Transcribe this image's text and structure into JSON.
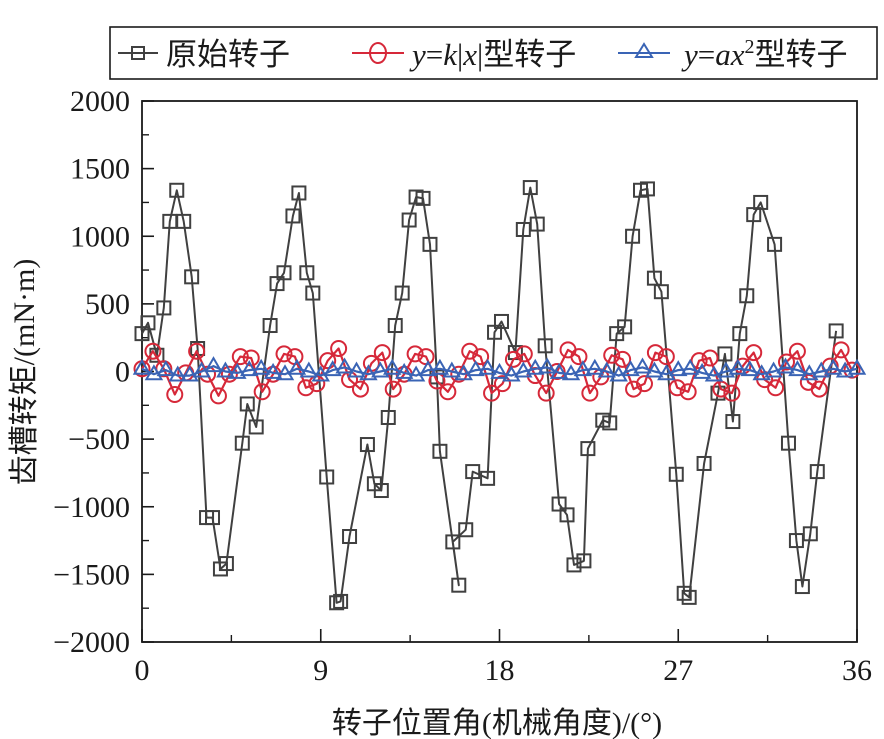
{
  "chart_data": {
    "type": "line",
    "title": "",
    "xlabel": "转子位置角(机械角度)/(°)",
    "ylabel": "齿槽转矩/(mN·m)",
    "xlim": [
      0,
      36
    ],
    "ylim": [
      -2000,
      2000
    ],
    "xticks": [
      0,
      9,
      18,
      27,
      36
    ],
    "xtick_labels": [
      "0",
      "9",
      "18",
      "27",
      "36"
    ],
    "yticks": [
      -2000,
      -1500,
      -1000,
      -500,
      0,
      500,
      1000,
      1500,
      2000
    ],
    "ytick_labels": [
      "−2000",
      "−1500",
      "−1000",
      "−500",
      "0",
      "500",
      "1000",
      "1500",
      "2000"
    ],
    "grid": false,
    "legend_position": "top (above plot, boxed)",
    "legend": [
      {
        "label": "原始转子",
        "marker": "square",
        "color": "#404040"
      },
      {
        "label": "y=k|x|型转子",
        "marker": "circle",
        "color": "#d62839"
      },
      {
        "label": "y=ax²型转子",
        "marker": "triangle",
        "color": "#3a64b5"
      }
    ],
    "series": [
      {
        "name": "原始转子",
        "color": "#404040",
        "marker": "square",
        "x": [
          0,
          0.3,
          0.75,
          1.1,
          1.4,
          1.75,
          2.1,
          2.5,
          2.8,
          3.25,
          3.55,
          3.95,
          4.25,
          5.05,
          5.3,
          5.75,
          6.45,
          6.8,
          7.15,
          7.6,
          7.9,
          8.3,
          8.6,
          9.3,
          9.8,
          10.0,
          10.45,
          11.35,
          11.7,
          12.05,
          12.4,
          12.75,
          13.1,
          13.45,
          13.8,
          14.15,
          14.5,
          14.85,
          15.0,
          15.95,
          15.65,
          16.3,
          16.65,
          17.4,
          17.75,
          18.1,
          18.8,
          19.2,
          19.55,
          19.9,
          20.3,
          21.0,
          21.4,
          21.75,
          22.25,
          22.45,
          23.2,
          23.55,
          23.9,
          24.3,
          24.7,
          25.1,
          25.45,
          25.8,
          26.15,
          26.9,
          27.3,
          27.55,
          28.3,
          29.0,
          29.35,
          29.75,
          30.1,
          30.45,
          30.8,
          31.15,
          31.85,
          32.55,
          32.95,
          33.25,
          33.65,
          34.0,
          34.95
        ],
        "y": [
          280,
          360,
          120,
          470,
          1110,
          1340,
          1110,
          700,
          170,
          -1080,
          -1080,
          -1460,
          -1420,
          -530,
          -240,
          -410,
          340,
          650,
          730,
          1150,
          1320,
          730,
          580,
          -780,
          -1710,
          -1700,
          -1220,
          -540,
          -830,
          -880,
          -340,
          340,
          580,
          1120,
          1290,
          1280,
          940,
          -40,
          -590,
          -1580,
          -1260,
          -1170,
          -740,
          -790,
          290,
          370,
          140,
          1050,
          1360,
          1090,
          190,
          -980,
          -1060,
          -1430,
          -1400,
          -570,
          -360,
          -380,
          280,
          330,
          1000,
          1340,
          1350,
          690,
          590,
          -760,
          -1640,
          -1670,
          -680,
          -160,
          130,
          -370,
          280,
          560,
          1160,
          1250,
          940,
          -530,
          -1250,
          -1590,
          -1200,
          -740,
          300
        ]
      },
      {
        "name": "y=k|x|型转子",
        "color": "#d62839",
        "marker": "circle",
        "x": [
          0,
          0.55,
          1.1,
          1.65,
          2.2,
          2.75,
          3.3,
          3.85,
          4.4,
          4.95,
          5.5,
          6.05,
          6.6,
          7.15,
          7.7,
          8.25,
          8.8,
          9.35,
          9.9,
          10.45,
          11.0,
          11.55,
          12.1,
          12.65,
          13.2,
          13.75,
          14.3,
          14.85,
          15.4,
          15.95,
          16.5,
          17.05,
          17.6,
          18.15,
          18.7,
          19.25,
          19.8,
          20.35,
          20.9,
          21.45,
          22.0,
          22.55,
          23.1,
          23.65,
          24.2,
          24.75,
          25.3,
          25.85,
          26.4,
          26.95,
          27.5,
          28.05,
          28.6,
          29.15,
          29.7,
          30.25,
          30.8,
          31.35,
          31.9,
          32.45,
          33.0,
          33.55,
          34.1,
          34.65,
          35.2,
          35.75
        ],
        "y": [
          20,
          150,
          20,
          -170,
          -10,
          150,
          -20,
          -180,
          -20,
          110,
          100,
          -150,
          -20,
          130,
          110,
          -120,
          -90,
          80,
          170,
          -60,
          -130,
          60,
          140,
          -130,
          -20,
          130,
          110,
          -70,
          -150,
          -20,
          150,
          110,
          -160,
          -90,
          90,
          130,
          -30,
          -160,
          0,
          160,
          110,
          -160,
          -40,
          120,
          90,
          -130,
          -90,
          140,
          110,
          -120,
          -150,
          80,
          100,
          -130,
          -160,
          40,
          140,
          -60,
          -120,
          70,
          150,
          -80,
          -130,
          40,
          160,
          10
        ]
      },
      {
        "name": "y=ax²型转子",
        "color": "#3a64b5",
        "marker": "triangle",
        "x": [
          0,
          0.6,
          1.2,
          1.8,
          2.4,
          3.0,
          3.6,
          4.2,
          4.8,
          5.4,
          6.0,
          6.6,
          7.2,
          7.8,
          8.4,
          9.0,
          9.6,
          10.2,
          10.8,
          11.4,
          12.0,
          12.6,
          13.2,
          13.8,
          14.4,
          15.0,
          15.6,
          16.2,
          16.8,
          17.4,
          18.0,
          18.6,
          19.2,
          19.8,
          20.4,
          21.0,
          21.6,
          22.2,
          22.8,
          23.4,
          24.0,
          24.6,
          25.2,
          25.8,
          26.4,
          27.0,
          27.6,
          28.2,
          28.8,
          29.4,
          30.0,
          30.6,
          31.2,
          31.8,
          32.4,
          33.0,
          33.6,
          34.2,
          34.8,
          35.4,
          36.0
        ],
        "y": [
          20,
          -20,
          10,
          -30,
          -30,
          0,
          40,
          0,
          -10,
          10,
          20,
          -10,
          -20,
          20,
          0,
          -30,
          10,
          30,
          0,
          -20,
          0,
          20,
          -10,
          -30,
          10,
          20,
          0,
          -20,
          10,
          20,
          -10,
          -30,
          0,
          20,
          30,
          -10,
          -20,
          10,
          20,
          0,
          -30,
          10,
          30,
          0,
          -20,
          10,
          20,
          -10,
          -30,
          0,
          20,
          10,
          -20,
          0,
          30,
          10,
          -20,
          0,
          20,
          0,
          20
        ]
      }
    ]
  },
  "legend": {
    "items": [
      {
        "label": "原始转子"
      },
      {
        "label_prefix": "y",
        "label_eq": "=",
        "label_k": "k",
        "label_bar1": "|",
        "label_x": "x",
        "label_bar2": "|",
        "label_suffix": "型转子"
      },
      {
        "label_prefix": "y",
        "label_eq": "=",
        "label_ax": "ax",
        "label_sup": "2",
        "label_suffix": "型转子"
      }
    ]
  },
  "axes": {
    "xlabel": "转子位置角(机械角度)/(°)",
    "ylabel": "齿槽转矩/(mN·m)"
  }
}
